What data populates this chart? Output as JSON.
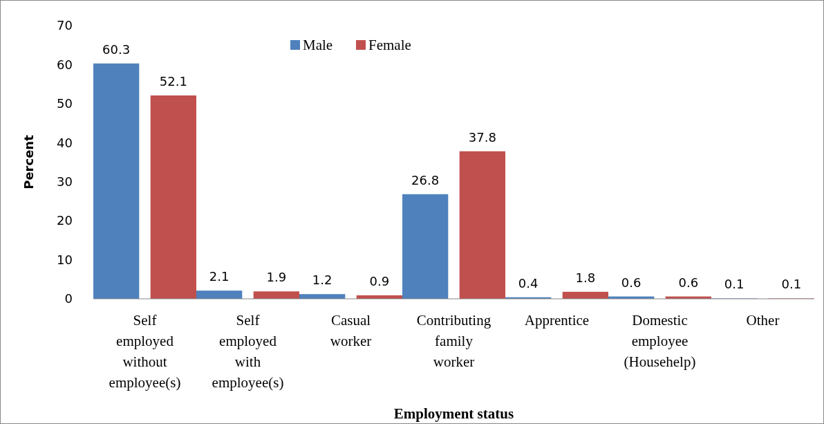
{
  "chart_data": {
    "type": "bar",
    "xlabel": "Employment status",
    "ylabel": "Percent",
    "categories": [
      "Self employed without employee(s)",
      "Self employed with employee(s)",
      "Casual worker",
      "Contributing family worker",
      "Apprentice",
      "Domestic employee (Househelp)",
      "Other"
    ],
    "series": [
      {
        "name": "Male",
        "color": "#4f81bd",
        "values": [
          60.3,
          2.1,
          1.2,
          26.8,
          0.4,
          0.6,
          0.1
        ]
      },
      {
        "name": "Female",
        "color": "#c0504d",
        "values": [
          52.1,
          1.9,
          0.9,
          37.8,
          1.8,
          0.6,
          0.1
        ]
      }
    ],
    "ylim": [
      0,
      70
    ],
    "yticks": [
      0,
      10,
      20,
      30,
      40,
      50,
      60,
      70
    ],
    "data_labels": true,
    "legend": "top",
    "grid": false
  }
}
